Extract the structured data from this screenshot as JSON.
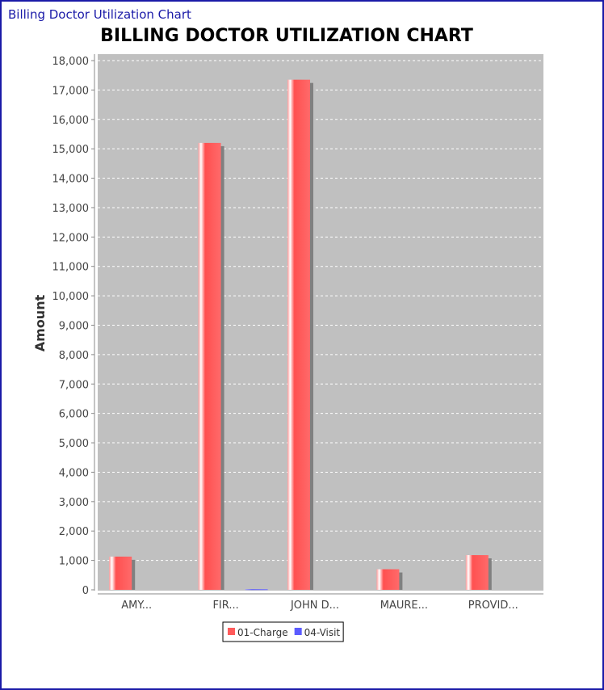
{
  "window": {
    "title": "Billing Doctor Utilization Chart"
  },
  "chart_data": {
    "type": "bar",
    "title": "BILLING DOCTOR UTILIZATION CHART",
    "xlabel": "",
    "ylabel": "Amount",
    "categories": [
      "AMY...",
      "FIR...",
      "JOHN D...",
      "MAURE...",
      "PROVID..."
    ],
    "series": [
      {
        "name": "01-Charge",
        "color": "#ff5b5b",
        "values": [
          1130,
          15200,
          17350,
          700,
          1180
        ]
      },
      {
        "name": "04-Visit",
        "color": "#5b5bff",
        "values": [
          0,
          20,
          0,
          0,
          0
        ]
      }
    ],
    "ylim": [
      0,
      18000
    ],
    "yticks": [
      "0",
      "1,000",
      "2,000",
      "3,000",
      "4,000",
      "5,000",
      "6,000",
      "7,000",
      "8,000",
      "9,000",
      "10,000",
      "11,000",
      "12,000",
      "13,000",
      "14,000",
      "15,000",
      "16,000",
      "17,000",
      "18,000"
    ],
    "grid": true,
    "plot_background": "#c0c0c0",
    "legend_position": "bottom"
  }
}
